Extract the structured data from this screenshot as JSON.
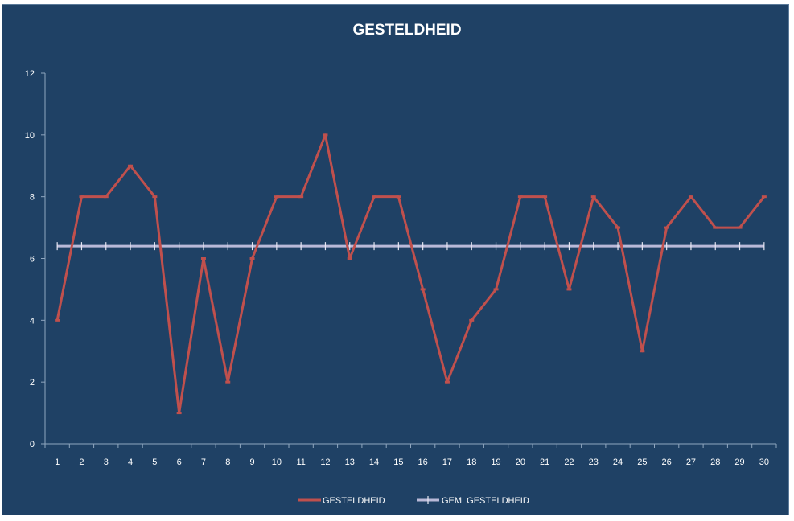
{
  "chart_data": {
    "type": "line",
    "title": "GESTELDHEID",
    "xlabel": "",
    "ylabel": "",
    "categories": [
      "1",
      "2",
      "3",
      "4",
      "5",
      "6",
      "7",
      "8",
      "9",
      "10",
      "11",
      "12",
      "13",
      "14",
      "15",
      "16",
      "17",
      "18",
      "19",
      "20",
      "21",
      "22",
      "23",
      "24",
      "25",
      "26",
      "27",
      "28",
      "29",
      "30"
    ],
    "ylim": [
      0,
      12
    ],
    "yticks": [
      "0",
      "2",
      "4",
      "6",
      "8",
      "10",
      "12"
    ],
    "grid": false,
    "legend_position": "bottom",
    "series": [
      {
        "name": "GESTELDHEID",
        "color": "#c0504d",
        "values": [
          4,
          8,
          8,
          9,
          8,
          1,
          6,
          2,
          6,
          8,
          8,
          10,
          6,
          8,
          8,
          5,
          2,
          4,
          5,
          8,
          8,
          5,
          8,
          7,
          3,
          7,
          8,
          7,
          7,
          8
        ]
      },
      {
        "name": "GEM. GESTELDHEID",
        "color": "#b9b9d8",
        "values": [
          6.4,
          6.4,
          6.4,
          6.4,
          6.4,
          6.4,
          6.4,
          6.4,
          6.4,
          6.4,
          6.4,
          6.4,
          6.4,
          6.4,
          6.4,
          6.4,
          6.4,
          6.4,
          6.4,
          6.4,
          6.4,
          6.4,
          6.4,
          6.4,
          6.4,
          6.4,
          6.4,
          6.4,
          6.4,
          6.4
        ]
      }
    ],
    "colors": {
      "background": "#1f4165",
      "axis": "#8fa6bf",
      "text": "#ffffff"
    }
  }
}
